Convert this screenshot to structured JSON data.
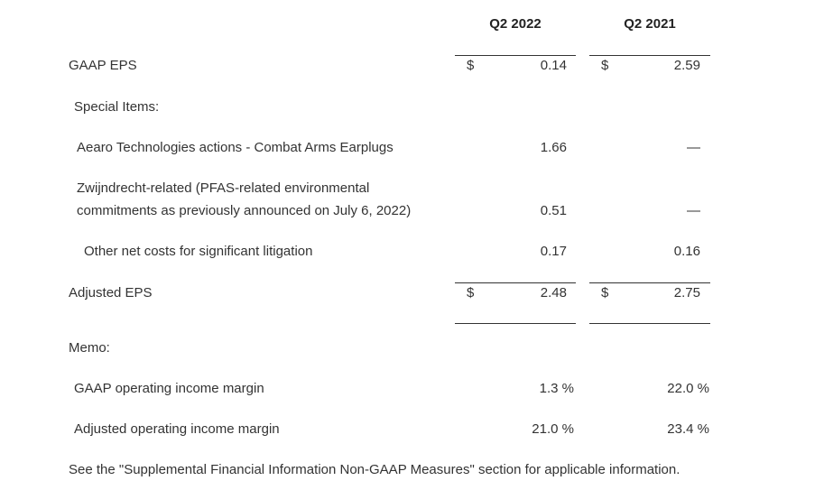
{
  "table": {
    "columns": [
      "Q2 2022",
      "Q2 2021"
    ],
    "rows": [
      {
        "label": "GAAP EPS",
        "currency_2022": "$",
        "q2_2022": "0.14",
        "currency_2021": "$",
        "q2_2021": "2.59"
      },
      {
        "label": "Special Items:"
      },
      {
        "label": "Aearo Technologies actions - Combat Arms Earplugs",
        "q2_2022": "1.66",
        "q2_2021": "—"
      },
      {
        "label_line1": "Zwijndrecht-related (PFAS-related environmental",
        "label_line2": "commitments as previously announced on July 6, 2022)",
        "q2_2022": "0.51",
        "q2_2021": "—"
      },
      {
        "label": "Other net costs for significant litigation",
        "q2_2022": "0.17",
        "q2_2021": "0.16"
      },
      {
        "label": "Adjusted EPS",
        "currency_2022": "$",
        "q2_2022": "2.48",
        "currency_2021": "$",
        "q2_2021": "2.75"
      },
      {
        "label": "Memo:"
      },
      {
        "label": "GAAP operating income margin",
        "q2_2022": "1.3 %",
        "q2_2021": "22.0 %"
      },
      {
        "label": "Adjusted operating income margin",
        "q2_2022": "21.0 %",
        "q2_2021": "23.4 %"
      }
    ]
  },
  "footnote": "See the \"Supplemental Financial Information Non-GAAP Measures\" section for applicable information."
}
